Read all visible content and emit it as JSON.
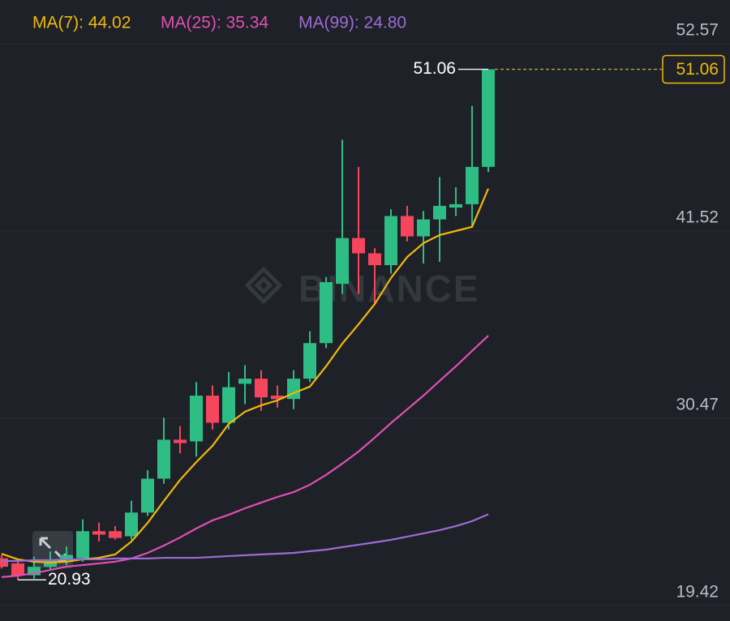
{
  "chart_data": {
    "type": "candlestick",
    "ylim": [
      18.5,
      55.15
    ],
    "yticks": [
      19.42,
      30.47,
      41.52,
      52.57
    ],
    "grid": true,
    "watermark": "BINANCE",
    "high_label": 51.06,
    "low_label": 20.93,
    "last_price": 51.06,
    "up_color": "#2ebd85",
    "down_color": "#f6465d",
    "candles": {
      "open": [
        22.2,
        21.9,
        21.2,
        21.7,
        22.1,
        22.2,
        23.8,
        23.8,
        23.5,
        24.9,
        26.9,
        29.2,
        29.1,
        31.8,
        30.2,
        32.5,
        32.8,
        31.8,
        31.6,
        32.8,
        34.9,
        38.4,
        41.1,
        40.2,
        39.5,
        42.4,
        41.2,
        42.2,
        42.9,
        43.1,
        45.3
      ],
      "high": [
        22.4,
        22.0,
        22.3,
        22.6,
        22.9,
        24.5,
        24.3,
        24.1,
        25.6,
        27.4,
        30.5,
        30.0,
        32.6,
        32.4,
        33.2,
        33.6,
        33.3,
        32.4,
        33.3,
        35.6,
        38.8,
        46.9,
        45.3,
        40.5,
        42.8,
        43.0,
        42.7,
        44.7,
        44.1,
        48.9,
        51.06
      ],
      "low": [
        21.6,
        20.93,
        21.0,
        21.5,
        21.8,
        22.0,
        23.2,
        23.3,
        23.3,
        24.7,
        26.6,
        28.4,
        28.2,
        29.8,
        29.8,
        31.3,
        30.9,
        31.1,
        31.0,
        32.6,
        34.6,
        37.8,
        37.8,
        37.2,
        39.0,
        40.9,
        39.6,
        39.7,
        42.4,
        41.8,
        45.0
      ],
      "close": [
        21.7,
        21.2,
        21.7,
        22.1,
        22.4,
        23.8,
        23.6,
        23.4,
        24.9,
        26.9,
        29.2,
        29.0,
        31.8,
        30.2,
        32.3,
        32.8,
        31.7,
        31.6,
        32.8,
        34.9,
        38.5,
        41.1,
        40.2,
        39.5,
        42.4,
        41.2,
        42.2,
        43.0,
        43.1,
        45.3,
        51.06
      ]
    },
    "series": [
      {
        "name": "MA(7): 44.02",
        "color": "#f0b90b",
        "values": [
          22.47,
          22.14,
          22.0,
          21.95,
          22.0,
          22.14,
          22.23,
          22.43,
          23.19,
          24.29,
          25.58,
          26.83,
          27.88,
          28.84,
          30.13,
          30.85,
          31.23,
          31.52,
          31.95,
          32.33,
          33.53,
          34.87,
          36.01,
          37.21,
          38.74,
          39.98,
          40.8,
          41.28,
          41.52,
          41.76,
          44.02
        ]
      },
      {
        "name": "MA(25): 35.34",
        "color": "#e14fb5",
        "values": [
          21.09,
          21.18,
          21.32,
          21.51,
          21.71,
          21.8,
          21.9,
          22.0,
          22.19,
          22.52,
          22.95,
          23.43,
          23.96,
          24.44,
          24.77,
          25.15,
          25.49,
          25.82,
          26.11,
          26.54,
          27.12,
          27.79,
          28.5,
          29.32,
          30.18,
          30.99,
          31.8,
          32.67,
          33.53,
          34.44,
          35.34
        ]
      },
      {
        "name": "MA(99): 24.80",
        "color": "#9d6bd8",
        "values": [
          22.04,
          22.04,
          22.09,
          22.09,
          22.14,
          22.14,
          22.14,
          22.19,
          22.19,
          22.19,
          22.23,
          22.23,
          22.23,
          22.28,
          22.33,
          22.38,
          22.43,
          22.47,
          22.52,
          22.62,
          22.71,
          22.86,
          23.0,
          23.14,
          23.29,
          23.48,
          23.67,
          23.86,
          24.1,
          24.39,
          24.8
        ]
      }
    ]
  }
}
